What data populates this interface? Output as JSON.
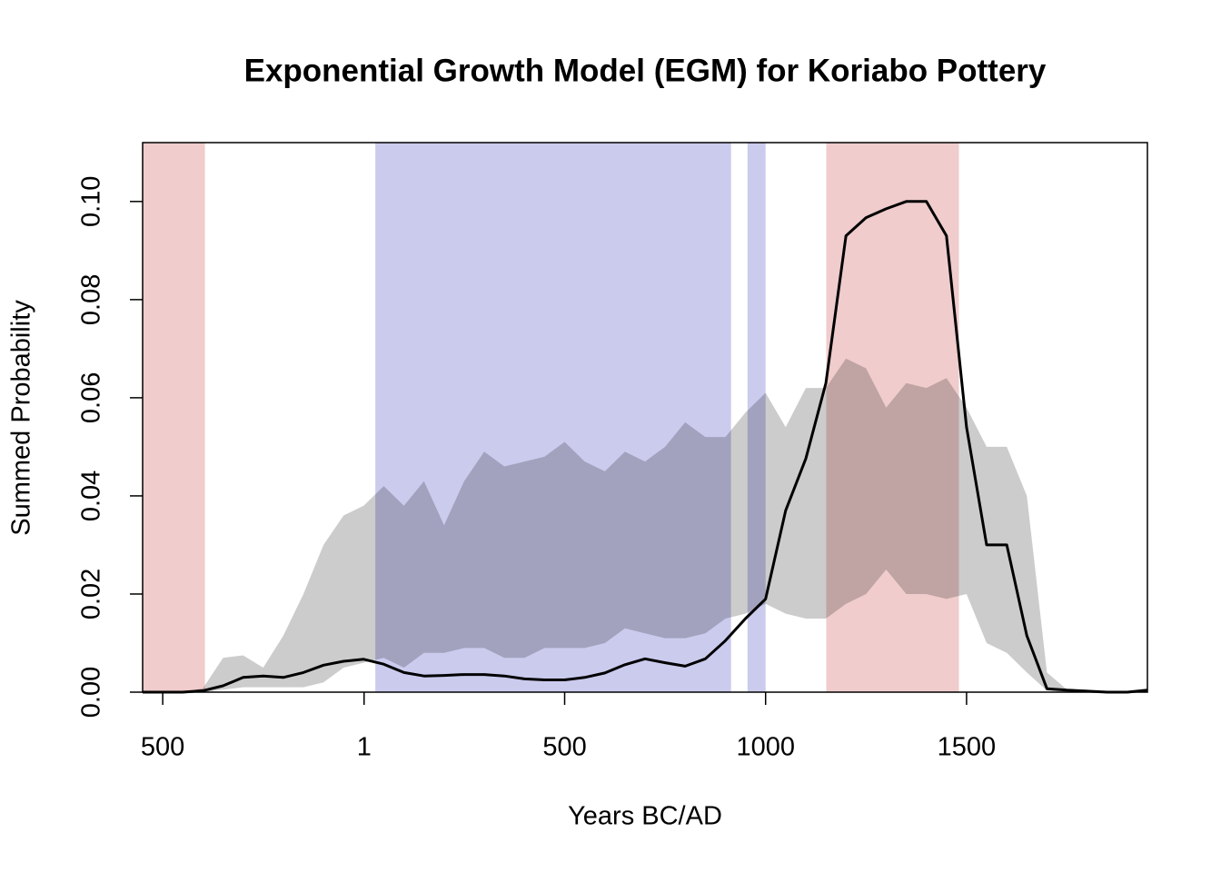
{
  "chart_data": {
    "type": "line",
    "title": "Exponential Growth Model (EGM) for Koriabo Pottery",
    "xlabel": "Years BC/AD",
    "ylabel": "Summed Probability",
    "x": [
      -550,
      -500,
      -450,
      -400,
      -350,
      -300,
      -250,
      -200,
      -150,
      -100,
      -50,
      0,
      50,
      100,
      150,
      200,
      250,
      300,
      350,
      400,
      450,
      500,
      550,
      600,
      650,
      700,
      750,
      800,
      850,
      900,
      950,
      1000,
      1050,
      1100,
      1150,
      1200,
      1250,
      1300,
      1350,
      1400,
      1450,
      1500,
      1550,
      1600,
      1650,
      1700,
      1750,
      1800,
      1850,
      1900,
      1950
    ],
    "line": {
      "color": "#000000",
      "values": [
        0,
        0,
        0,
        0.0003,
        0.0013,
        0.003,
        0.0033,
        0.003,
        0.004,
        0.0055,
        0.0063,
        0.0067,
        0.0057,
        0.004,
        0.0033,
        0.0034,
        0.0036,
        0.0036,
        0.0033,
        0.0027,
        0.0025,
        0.0025,
        0.003,
        0.0039,
        0.0056,
        0.0068,
        0.006,
        0.0053,
        0.0068,
        0.0105,
        0.015,
        0.019,
        0.037,
        0.0476,
        0.063,
        0.093,
        0.0967,
        0.0985,
        0.1,
        0.1,
        0.093,
        0.054,
        0.03,
        0.03,
        0.0115,
        0.0007,
        0.0004,
        0.0002,
        0,
        0,
        0.0004
      ]
    },
    "envelope": {
      "color": "rgba(0,0,0,0.2)",
      "lower": [
        0,
        0,
        0,
        0,
        0.0005,
        0.001,
        0.001,
        0.001,
        0.001,
        0.002,
        0.005,
        0.006,
        0.007,
        0.005,
        0.008,
        0.008,
        0.009,
        0.009,
        0.007,
        0.007,
        0.009,
        0.009,
        0.009,
        0.01,
        0.013,
        0.012,
        0.011,
        0.011,
        0.012,
        0.015,
        0.016,
        0.018,
        0.016,
        0.015,
        0.015,
        0.018,
        0.02,
        0.025,
        0.02,
        0.02,
        0.019,
        0.02,
        0.01,
        0.008,
        0.004,
        0.0003,
        0,
        0,
        0,
        0,
        0
      ],
      "upper": [
        0,
        0,
        0,
        0.0008,
        0.007,
        0.0075,
        0.005,
        0.0115,
        0.02,
        0.03,
        0.036,
        0.038,
        0.042,
        0.038,
        0.043,
        0.034,
        0.043,
        0.049,
        0.046,
        0.047,
        0.048,
        0.051,
        0.047,
        0.045,
        0.049,
        0.047,
        0.05,
        0.055,
        0.052,
        0.052,
        0.057,
        0.061,
        0.054,
        0.062,
        0.062,
        0.068,
        0.066,
        0.058,
        0.063,
        0.062,
        0.064,
        0.058,
        0.05,
        0.05,
        0.04,
        0.004,
        0.0005,
        0.0005,
        0,
        0,
        0.0006
      ]
    },
    "regions": [
      {
        "xlim": [
          -550,
          -395
        ],
        "color": "#f0cccc"
      },
      {
        "xlim": [
          29,
          914
        ],
        "color": "#cbcbee"
      },
      {
        "xlim": [
          955,
          1000
        ],
        "color": "#cbcbee"
      },
      {
        "xlim": [
          1151,
          1481
        ],
        "color": "#f0cccc"
      }
    ],
    "xlim": [
      -550,
      1950
    ],
    "ylim": [
      0,
      0.112
    ],
    "xticks": [
      {
        "value": -500,
        "label": "500"
      },
      1,
      500,
      1000,
      1500
    ],
    "yticks": [
      {
        "value": 0,
        "label": "0.00"
      },
      {
        "value": 0.02,
        "label": "0.02"
      },
      {
        "value": 0.04,
        "label": "0.04"
      },
      {
        "value": 0.06,
        "label": "0.06"
      },
      {
        "value": 0.08,
        "label": "0.08"
      },
      {
        "value": 0.1,
        "label": "0.10"
      }
    ]
  }
}
